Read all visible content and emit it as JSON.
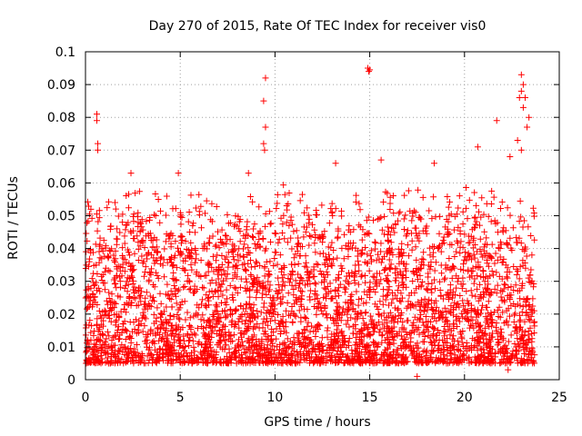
{
  "chart_data": {
    "type": "scatter",
    "title": "Day 270 of 2015, Rate Of TEC Index for receiver vis0",
    "xlabel": "GPS time / hours",
    "ylabel": "ROTI / TECUs",
    "xlim": [
      0,
      25
    ],
    "ylim": [
      0,
      0.1
    ],
    "xticks": [
      0,
      5,
      10,
      15,
      20,
      25
    ],
    "yticks": [
      0,
      0.01,
      0.02,
      0.03,
      0.04,
      0.05,
      0.06,
      0.07,
      0.08,
      0.09,
      0.1
    ],
    "xtick_labels": [
      "0",
      "5",
      "10",
      "15",
      "20",
      "25"
    ],
    "ytick_labels": [
      "0",
      "0.01",
      "0.02",
      "0.03",
      "0.04",
      "0.05",
      "0.06",
      "0.07",
      "0.08",
      "0.09",
      "0.1"
    ],
    "grid": true,
    "marker": "+",
    "color": "#ff0000",
    "data_x_range": [
      0,
      23.7
    ],
    "bulk_y_range": [
      0.005,
      0.06
    ],
    "outliers": [
      {
        "x": 0.6,
        "y": 0.081
      },
      {
        "x": 0.6,
        "y": 0.079
      },
      {
        "x": 0.65,
        "y": 0.072
      },
      {
        "x": 0.65,
        "y": 0.07
      },
      {
        "x": 9.5,
        "y": 0.092
      },
      {
        "x": 9.4,
        "y": 0.085
      },
      {
        "x": 9.5,
        "y": 0.077
      },
      {
        "x": 9.4,
        "y": 0.072
      },
      {
        "x": 9.45,
        "y": 0.07
      },
      {
        "x": 14.9,
        "y": 0.095
      },
      {
        "x": 14.95,
        "y": 0.094
      },
      {
        "x": 15.0,
        "y": 0.0945
      },
      {
        "x": 20.7,
        "y": 0.071
      },
      {
        "x": 21.7,
        "y": 0.079
      },
      {
        "x": 22.9,
        "y": 0.086
      },
      {
        "x": 23.0,
        "y": 0.093
      },
      {
        "x": 23.1,
        "y": 0.09
      },
      {
        "x": 23.0,
        "y": 0.088
      },
      {
        "x": 23.2,
        "y": 0.086
      },
      {
        "x": 23.1,
        "y": 0.083
      },
      {
        "x": 23.4,
        "y": 0.08
      },
      {
        "x": 23.3,
        "y": 0.077
      },
      {
        "x": 22.8,
        "y": 0.073
      },
      {
        "x": 23.0,
        "y": 0.07
      },
      {
        "x": 22.4,
        "y": 0.068
      },
      {
        "x": 8.6,
        "y": 0.063
      },
      {
        "x": 2.4,
        "y": 0.063
      },
      {
        "x": 4.9,
        "y": 0.063
      },
      {
        "x": 15.6,
        "y": 0.067
      },
      {
        "x": 18.4,
        "y": 0.066
      },
      {
        "x": 13.2,
        "y": 0.066
      },
      {
        "x": 17.5,
        "y": 0.001
      },
      {
        "x": 22.3,
        "y": 0.003
      }
    ]
  }
}
